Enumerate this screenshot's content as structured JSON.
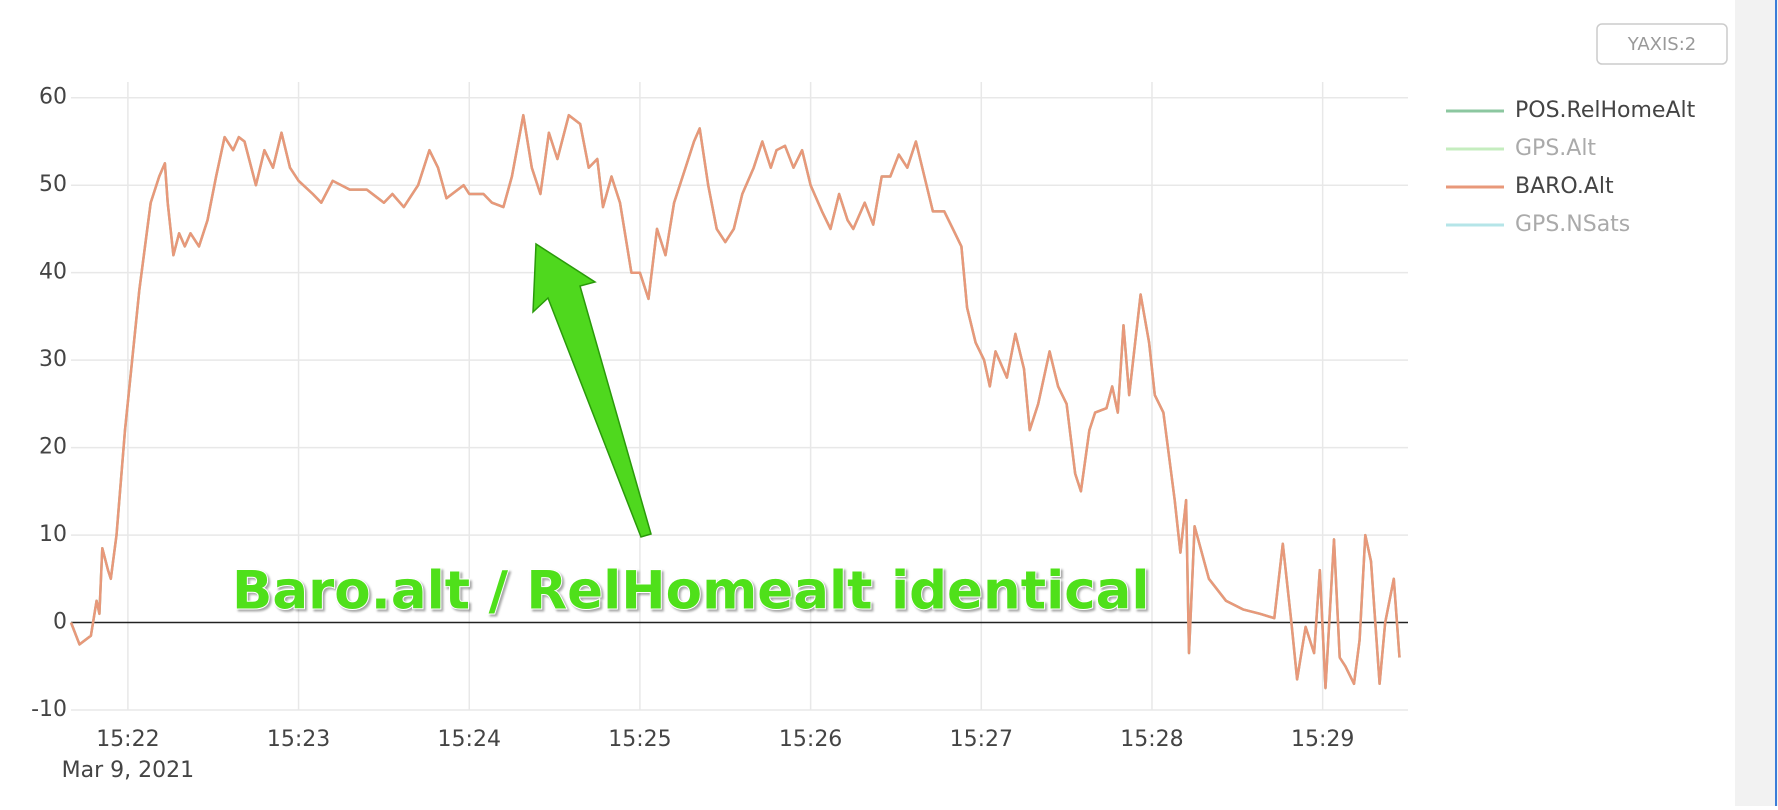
{
  "chart_data": {
    "type": "line",
    "annotation": "Baro.alt / RelHomealt identical",
    "button": "YAXIS:2",
    "x_date_label": "Mar 9, 2021",
    "xlim": [
      "2021-03-09 15:21:40",
      "2021-03-09 15:29:30"
    ],
    "xticks": [
      {
        "value": "2021-03-09 15:22:00",
        "label": "15:22"
      },
      {
        "value": "2021-03-09 15:23:00",
        "label": "15:23"
      },
      {
        "value": "2021-03-09 15:24:00",
        "label": "15:24"
      },
      {
        "value": "2021-03-09 15:25:00",
        "label": "15:25"
      },
      {
        "value": "2021-03-09 15:26:00",
        "label": "15:26"
      },
      {
        "value": "2021-03-09 15:27:00",
        "label": "15:27"
      },
      {
        "value": "2021-03-09 15:28:00",
        "label": "15:28"
      },
      {
        "value": "2021-03-09 15:29:00",
        "label": "15:29"
      }
    ],
    "ylim": [
      -10,
      61.8
    ],
    "yticks": [
      -10,
      0,
      10,
      20,
      30,
      40,
      50,
      60
    ],
    "grid": true,
    "zeroline": true,
    "legend": "right",
    "x": [
      "2021-03-09 15:21:40",
      "2021-03-09 15:21:43",
      "2021-03-09 15:21:47",
      "2021-03-09 15:21:49",
      "2021-03-09 15:21:50",
      "2021-03-09 15:21:51",
      "2021-03-09 15:21:53",
      "2021-03-09 15:21:54",
      "2021-03-09 15:21:56",
      "2021-03-09 15:21:59",
      "2021-03-09 15:22:04",
      "2021-03-09 15:22:08",
      "2021-03-09 15:22:11",
      "2021-03-09 15:22:13",
      "2021-03-09 15:22:14",
      "2021-03-09 15:22:16",
      "2021-03-09 15:22:18",
      "2021-03-09 15:22:20",
      "2021-03-09 15:22:22",
      "2021-03-09 15:22:25",
      "2021-03-09 15:22:28",
      "2021-03-09 15:22:31",
      "2021-03-09 15:22:34",
      "2021-03-09 15:22:37",
      "2021-03-09 15:22:39",
      "2021-03-09 15:22:41",
      "2021-03-09 15:22:45",
      "2021-03-09 15:22:48",
      "2021-03-09 15:22:51",
      "2021-03-09 15:22:54",
      "2021-03-09 15:22:57",
      "2021-03-09 15:23:00",
      "2021-03-09 15:23:05",
      "2021-03-09 15:23:08",
      "2021-03-09 15:23:12",
      "2021-03-09 15:23:18",
      "2021-03-09 15:23:24",
      "2021-03-09 15:23:30",
      "2021-03-09 15:23:33",
      "2021-03-09 15:23:37",
      "2021-03-09 15:23:42",
      "2021-03-09 15:23:46",
      "2021-03-09 15:23:49",
      "2021-03-09 15:23:52",
      "2021-03-09 15:23:58",
      "2021-03-09 15:24:00",
      "2021-03-09 15:24:05",
      "2021-03-09 15:24:08",
      "2021-03-09 15:24:12",
      "2021-03-09 15:24:15",
      "2021-03-09 15:24:19",
      "2021-03-09 15:24:22",
      "2021-03-09 15:24:25",
      "2021-03-09 15:24:28",
      "2021-03-09 15:24:31",
      "2021-03-09 15:24:35",
      "2021-03-09 15:24:39",
      "2021-03-09 15:24:42",
      "2021-03-09 15:24:45",
      "2021-03-09 15:24:47",
      "2021-03-09 15:24:50",
      "2021-03-09 15:24:53",
      "2021-03-09 15:24:57",
      "2021-03-09 15:25:00",
      "2021-03-09 15:25:03",
      "2021-03-09 15:25:06",
      "2021-03-09 15:25:09",
      "2021-03-09 15:25:12",
      "2021-03-09 15:25:16",
      "2021-03-09 15:25:19",
      "2021-03-09 15:25:21",
      "2021-03-09 15:25:24",
      "2021-03-09 15:25:27",
      "2021-03-09 15:25:30",
      "2021-03-09 15:25:33",
      "2021-03-09 15:25:36",
      "2021-03-09 15:25:40",
      "2021-03-09 15:25:43",
      "2021-03-09 15:25:46",
      "2021-03-09 15:25:48",
      "2021-03-09 15:25:51",
      "2021-03-09 15:25:54",
      "2021-03-09 15:25:57",
      "2021-03-09 15:26:00",
      "2021-03-09 15:26:04",
      "2021-03-09 15:26:07",
      "2021-03-09 15:26:10",
      "2021-03-09 15:26:13",
      "2021-03-09 15:26:15",
      "2021-03-09 15:26:19",
      "2021-03-09 15:26:22",
      "2021-03-09 15:26:25",
      "2021-03-09 15:26:28",
      "2021-03-09 15:26:31",
      "2021-03-09 15:26:34",
      "2021-03-09 15:26:37",
      "2021-03-09 15:26:40",
      "2021-03-09 15:26:43",
      "2021-03-09 15:26:47",
      "2021-03-09 15:26:50",
      "2021-03-09 15:26:53",
      "2021-03-09 15:26:55",
      "2021-03-09 15:26:58",
      "2021-03-09 15:27:01",
      "2021-03-09 15:27:03",
      "2021-03-09 15:27:05",
      "2021-03-09 15:27:09",
      "2021-03-09 15:27:12",
      "2021-03-09 15:27:15",
      "2021-03-09 15:27:17",
      "2021-03-09 15:27:20",
      "2021-03-09 15:27:22",
      "2021-03-09 15:27:24",
      "2021-03-09 15:27:27",
      "2021-03-09 15:27:30",
      "2021-03-09 15:27:33",
      "2021-03-09 15:27:35",
      "2021-03-09 15:27:38",
      "2021-03-09 15:27:40",
      "2021-03-09 15:27:44",
      "2021-03-09 15:27:46",
      "2021-03-09 15:27:48",
      "2021-03-09 15:27:50",
      "2021-03-09 15:27:52",
      "2021-03-09 15:27:56",
      "2021-03-09 15:27:59",
      "2021-03-09 15:28:01",
      "2021-03-09 15:28:04",
      "2021-03-09 15:28:08",
      "2021-03-09 15:28:10",
      "2021-03-09 15:28:12",
      "2021-03-09 15:28:13",
      "2021-03-09 15:28:15",
      "2021-03-09 15:28:20",
      "2021-03-09 15:28:26",
      "2021-03-09 15:28:32",
      "2021-03-09 15:28:38",
      "2021-03-09 15:28:43",
      "2021-03-09 15:28:46",
      "2021-03-09 15:28:49",
      "2021-03-09 15:28:51",
      "2021-03-09 15:28:54",
      "2021-03-09 15:28:57",
      "2021-03-09 15:28:59",
      "2021-03-09 15:29:01",
      "2021-03-09 15:29:04",
      "2021-03-09 15:29:06",
      "2021-03-09 15:29:08",
      "2021-03-09 15:29:11",
      "2021-03-09 15:29:13",
      "2021-03-09 15:29:15",
      "2021-03-09 15:29:17",
      "2021-03-09 15:29:20",
      "2021-03-09 15:29:22",
      "2021-03-09 15:29:25",
      "2021-03-09 15:29:27"
    ],
    "series": [
      {
        "name": "POS.RelHomeAlt",
        "color": "#8cc7a0",
        "visible": true,
        "values": [
          0,
          -2.5,
          -1.5,
          2.5,
          1,
          8.5,
          6,
          5,
          10,
          22,
          38,
          48,
          51,
          52.5,
          48,
          42,
          44.5,
          43,
          44.5,
          43,
          46,
          51,
          55.5,
          54,
          55.5,
          55,
          50,
          54,
          52,
          56,
          52,
          50.5,
          49,
          48,
          50.5,
          49.5,
          49.5,
          48,
          49,
          47.5,
          50,
          54,
          52,
          48.5,
          50,
          49,
          49,
          48,
          47.5,
          51,
          58,
          52,
          49,
          56,
          53,
          58,
          57,
          52,
          53,
          47.5,
          51,
          48,
          40,
          40,
          37,
          45,
          42,
          48,
          52,
          55,
          56.5,
          50,
          45,
          43.5,
          45,
          49,
          52,
          55,
          52,
          54,
          54.5,
          52,
          54,
          50,
          47,
          45,
          49,
          46,
          45,
          48,
          45.5,
          51,
          51,
          53.5,
          52,
          55,
          51,
          47,
          47,
          45,
          43,
          36,
          32,
          30,
          27,
          31,
          28,
          33,
          29,
          22,
          25,
          28,
          31,
          27,
          25,
          17,
          15,
          22,
          24,
          24.5,
          27,
          24,
          34,
          26,
          37.5,
          32,
          26,
          24,
          14,
          8,
          14,
          -3.5,
          11,
          5,
          2.5,
          1.5,
          1,
          0.5,
          9,
          0,
          -6.5,
          -0.5,
          -3.5,
          6,
          -7.5,
          9.5,
          -4,
          -5,
          -7,
          -2,
          10,
          7,
          -7,
          0,
          5,
          -4
        ]
      },
      {
        "name": "GPS.Alt",
        "color": "#c5edbf",
        "visible": false
      },
      {
        "name": "BARO.Alt",
        "color": "#e8987a",
        "visible": true,
        "values": [
          0,
          -2.5,
          -1.5,
          2.5,
          1,
          8.5,
          6,
          5,
          10,
          22,
          38,
          48,
          51,
          52.5,
          48,
          42,
          44.5,
          43,
          44.5,
          43,
          46,
          51,
          55.5,
          54,
          55.5,
          55,
          50,
          54,
          52,
          56,
          52,
          50.5,
          49,
          48,
          50.5,
          49.5,
          49.5,
          48,
          49,
          47.5,
          50,
          54,
          52,
          48.5,
          50,
          49,
          49,
          48,
          47.5,
          51,
          58,
          52,
          49,
          56,
          53,
          58,
          57,
          52,
          53,
          47.5,
          51,
          48,
          40,
          40,
          37,
          45,
          42,
          48,
          52,
          55,
          56.5,
          50,
          45,
          43.5,
          45,
          49,
          52,
          55,
          52,
          54,
          54.5,
          52,
          54,
          50,
          47,
          45,
          49,
          46,
          45,
          48,
          45.5,
          51,
          51,
          53.5,
          52,
          55,
          51,
          47,
          47,
          45,
          43,
          36,
          32,
          30,
          27,
          31,
          28,
          33,
          29,
          22,
          25,
          28,
          31,
          27,
          25,
          17,
          15,
          22,
          24,
          24.5,
          27,
          24,
          34,
          26,
          37.5,
          32,
          26,
          24,
          14,
          8,
          14,
          -3.5,
          11,
          5,
          2.5,
          1.5,
          1,
          0.5,
          9,
          0,
          -6.5,
          -0.5,
          -3.5,
          6,
          -7.5,
          9.5,
          -4,
          -5,
          -7,
          -2,
          10,
          7,
          -7,
          0,
          5,
          -4
        ]
      },
      {
        "name": "GPS.NSats",
        "color": "#b5e5e8",
        "visible": false
      }
    ]
  }
}
